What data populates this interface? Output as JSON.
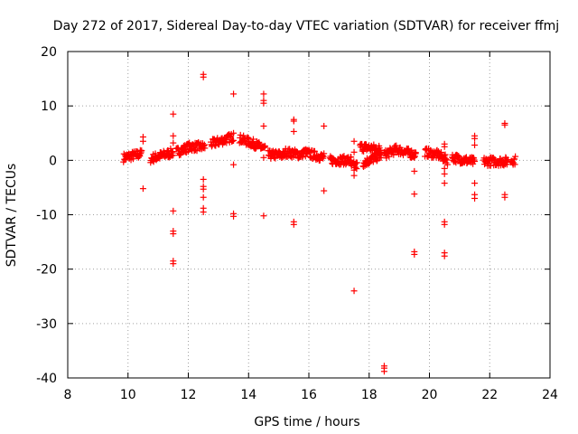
{
  "chart_data": {
    "type": "scatter",
    "title": "Day 272 of 2017, Sidereal Day-to-day VTEC variation (SDTVAR) for receiver ffmj",
    "xlabel": "GPS time / hours",
    "ylabel": "SDTVAR / TECUs",
    "xlim": [
      8,
      24
    ],
    "ylim": [
      -40,
      20
    ],
    "xticks": [
      8,
      10,
      12,
      14,
      16,
      18,
      20,
      22,
      24
    ],
    "yticks": [
      -40,
      -30,
      -20,
      -10,
      0,
      10,
      20
    ],
    "grid": true,
    "marker": "plus",
    "color": "#ff0000",
    "band_segments": [
      {
        "x0": 9.85,
        "x1": 10.45,
        "y0": 0.5,
        "y1": 1.2
      },
      {
        "x0": 10.75,
        "x1": 11.5,
        "y0": 0.3,
        "y1": 1.5
      },
      {
        "x0": 11.6,
        "x1": 12.05,
        "y0": 1.5,
        "y1": 2.5
      },
      {
        "x0": 12.05,
        "x1": 12.55,
        "y0": 2.5,
        "y1": 2.5
      },
      {
        "x0": 12.75,
        "x1": 13.5,
        "y0": 3.0,
        "y1": 4.3
      },
      {
        "x0": 13.7,
        "x1": 14.2,
        "y0": 4.0,
        "y1": 3.0
      },
      {
        "x0": 14.2,
        "x1": 14.55,
        "y0": 3.0,
        "y1": 2.0
      },
      {
        "x0": 14.65,
        "x1": 15.2,
        "y0": 1.0,
        "y1": 1.0
      },
      {
        "x0": 15.2,
        "x1": 15.8,
        "y0": 1.5,
        "y1": 1.0
      },
      {
        "x0": 15.8,
        "x1": 16.5,
        "y0": 1.5,
        "y1": 0.5
      },
      {
        "x0": 16.7,
        "x1": 17.4,
        "y0": 0.0,
        "y1": 0.0
      },
      {
        "x0": 17.4,
        "x1": 17.6,
        "y0": -1.0,
        "y1": -1.0
      },
      {
        "x0": 17.7,
        "x1": 18.4,
        "y0": 2.5,
        "y1": 2.0
      },
      {
        "x0": 17.8,
        "x1": 18.4,
        "y0": -0.5,
        "y1": 1.0
      },
      {
        "x0": 18.5,
        "x1": 18.9,
        "y0": 1.0,
        "y1": 2.0
      },
      {
        "x0": 18.9,
        "x1": 19.55,
        "y0": 2.0,
        "y1": 1.0
      },
      {
        "x0": 19.85,
        "x1": 20.3,
        "y0": 1.5,
        "y1": 1.0
      },
      {
        "x0": 20.3,
        "x1": 20.6,
        "y0": 1.0,
        "y1": 0.0
      },
      {
        "x0": 20.75,
        "x1": 21.5,
        "y0": 0.5,
        "y1": -0.3
      },
      {
        "x0": 21.8,
        "x1": 22.6,
        "y0": -0.2,
        "y1": -0.2
      },
      {
        "x0": 22.7,
        "x1": 22.85,
        "y0": 0.0,
        "y1": 0.0
      }
    ],
    "points": [
      [
        10.5,
        4.3
      ],
      [
        10.5,
        3.5
      ],
      [
        10.5,
        -5.2
      ],
      [
        11.5,
        8.5
      ],
      [
        11.5,
        4.5
      ],
      [
        11.5,
        3.2
      ],
      [
        11.5,
        -9.3
      ],
      [
        11.5,
        -13.0
      ],
      [
        11.5,
        -13.5
      ],
      [
        11.5,
        -18.5
      ],
      [
        11.5,
        -19.0
      ],
      [
        12.5,
        15.8
      ],
      [
        12.5,
        15.3
      ],
      [
        12.5,
        -3.5
      ],
      [
        12.5,
        -4.8
      ],
      [
        12.5,
        -5.3
      ],
      [
        12.5,
        -6.8
      ],
      [
        12.5,
        -8.8
      ],
      [
        12.5,
        -9.5
      ],
      [
        13.5,
        12.2
      ],
      [
        13.5,
        5.0
      ],
      [
        13.5,
        -0.8
      ],
      [
        13.5,
        -9.8
      ],
      [
        13.5,
        -10.3
      ],
      [
        14.5,
        12.2
      ],
      [
        14.5,
        11.0
      ],
      [
        14.5,
        10.5
      ],
      [
        14.5,
        6.3
      ],
      [
        14.5,
        0.5
      ],
      [
        14.5,
        -10.2
      ],
      [
        15.5,
        7.5
      ],
      [
        15.5,
        7.2
      ],
      [
        15.5,
        5.3
      ],
      [
        15.5,
        -11.3
      ],
      [
        15.5,
        -11.8
      ],
      [
        16.5,
        6.3
      ],
      [
        16.5,
        -5.6
      ],
      [
        17.5,
        3.5
      ],
      [
        17.5,
        1.5
      ],
      [
        17.5,
        -1.8
      ],
      [
        17.5,
        -2.8
      ],
      [
        17.5,
        -24.0
      ],
      [
        18.5,
        -37.8
      ],
      [
        18.5,
        -38.2
      ],
      [
        18.5,
        -38.8
      ],
      [
        19.5,
        -2.0
      ],
      [
        19.5,
        -6.2
      ],
      [
        19.5,
        -16.8
      ],
      [
        19.5,
        -17.3
      ],
      [
        20.5,
        3.0
      ],
      [
        20.5,
        2.5
      ],
      [
        20.5,
        -1.5
      ],
      [
        20.5,
        -2.5
      ],
      [
        20.5,
        -4.2
      ],
      [
        20.5,
        -11.3
      ],
      [
        20.5,
        -11.8
      ],
      [
        20.5,
        -17.0
      ],
      [
        20.5,
        -17.6
      ],
      [
        21.5,
        4.5
      ],
      [
        21.5,
        4.0
      ],
      [
        21.5,
        2.8
      ],
      [
        21.5,
        -4.2
      ],
      [
        21.5,
        -6.3
      ],
      [
        21.5,
        -7.0
      ],
      [
        22.5,
        6.8
      ],
      [
        22.5,
        6.5
      ],
      [
        22.5,
        -6.3
      ],
      [
        22.5,
        -6.8
      ]
    ]
  }
}
